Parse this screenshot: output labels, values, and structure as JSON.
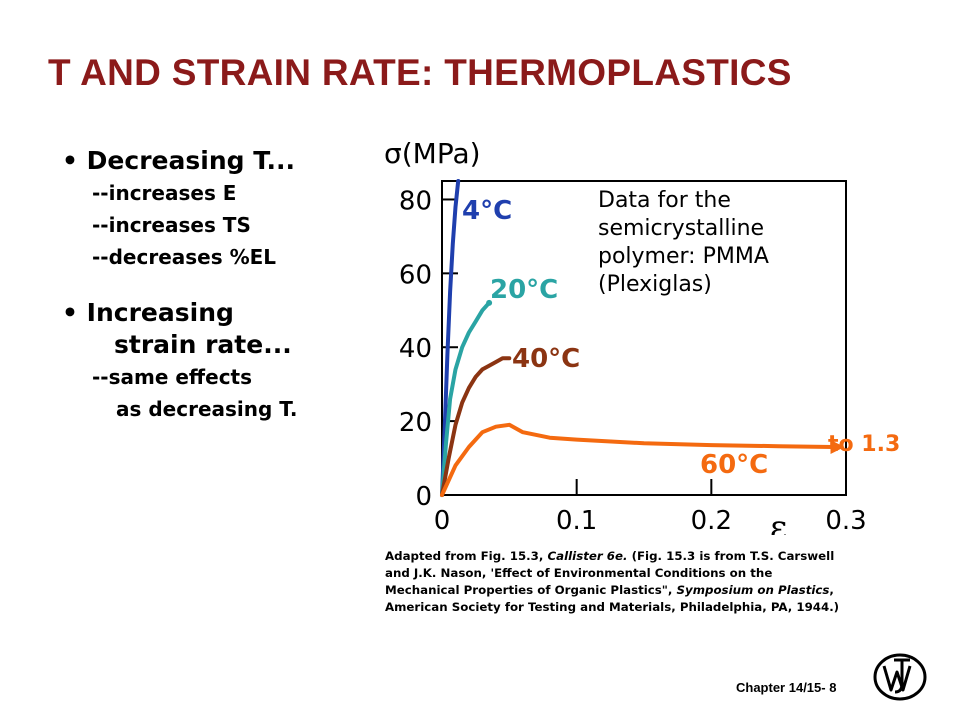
{
  "title": "T AND STRAIN RATE:  THERMOPLASTICS",
  "bullets": {
    "b1": "•  Decreasing T...",
    "b1_sub": [
      "--increases E",
      "--increases TS",
      "--decreases %EL"
    ],
    "b2_line1": "•  Increasing",
    "b2_line2": "strain rate...",
    "b2_sub1": "--same effects",
    "b2_sub2": "as decreasing T."
  },
  "chart_data": {
    "type": "line",
    "ylabel": "σ(MPa)",
    "xlabel": "ε",
    "xlim": [
      0,
      0.3
    ],
    "ylim": [
      0,
      85
    ],
    "xticks": [
      "0",
      "0.1",
      "0.2",
      "0.3"
    ],
    "yticks": [
      "0",
      "20",
      "40",
      "60",
      "80"
    ],
    "grid": false,
    "annotation_lines": [
      "Data for the",
      "semicrystalline",
      "polymer: PMMA",
      "(Plexiglas)"
    ],
    "extension_label": "to 1.3",
    "series": [
      {
        "name": "4°C",
        "color": "#1f3fae",
        "x": [
          0,
          0.002,
          0.004,
          0.006,
          0.008,
          0.01,
          0.012
        ],
        "y": [
          0,
          18,
          38,
          55,
          68,
          78,
          85
        ]
      },
      {
        "name": "20°C",
        "color": "#2aa4a4",
        "x": [
          0,
          0.003,
          0.006,
          0.01,
          0.015,
          0.02,
          0.025,
          0.03,
          0.035
        ],
        "y": [
          0,
          14,
          26,
          34,
          40,
          44,
          47,
          50,
          52
        ]
      },
      {
        "name": "40°C",
        "color": "#8B3412",
        "x": [
          0,
          0.005,
          0.01,
          0.015,
          0.02,
          0.025,
          0.03,
          0.035,
          0.04,
          0.045,
          0.05
        ],
        "y": [
          0,
          10,
          19,
          25,
          29,
          32,
          34,
          35,
          36,
          37,
          37
        ]
      },
      {
        "name": "60°C",
        "color": "#F46A10",
        "x": [
          0,
          0.01,
          0.02,
          0.03,
          0.04,
          0.05,
          0.06,
          0.08,
          0.1,
          0.15,
          0.2,
          0.25,
          0.29
        ],
        "y": [
          0,
          8,
          13,
          17,
          18.5,
          19,
          17,
          15.5,
          15,
          14,
          13.5,
          13.2,
          13
        ]
      }
    ]
  },
  "caption": {
    "l1_a": "Adapted from Fig. 15.3, ",
    "l1_b": "Callister 6e.",
    "l1_c": "  (Fig. 15.3 is from T.S. Carswell",
    "l2": "and J.K. Nason, 'Effect of Environmental Conditions on the",
    "l3_a": "Mechanical Properties of Organic Plastics\", ",
    "l3_b": "Symposium on Plastics",
    "l3_c": ",",
    "l4": "American Society for Testing and Materials, Philadelphia, PA, 1944.)"
  },
  "footer": "Chapter 14/15- 8",
  "logo_icon": "wiley-logo-icon"
}
